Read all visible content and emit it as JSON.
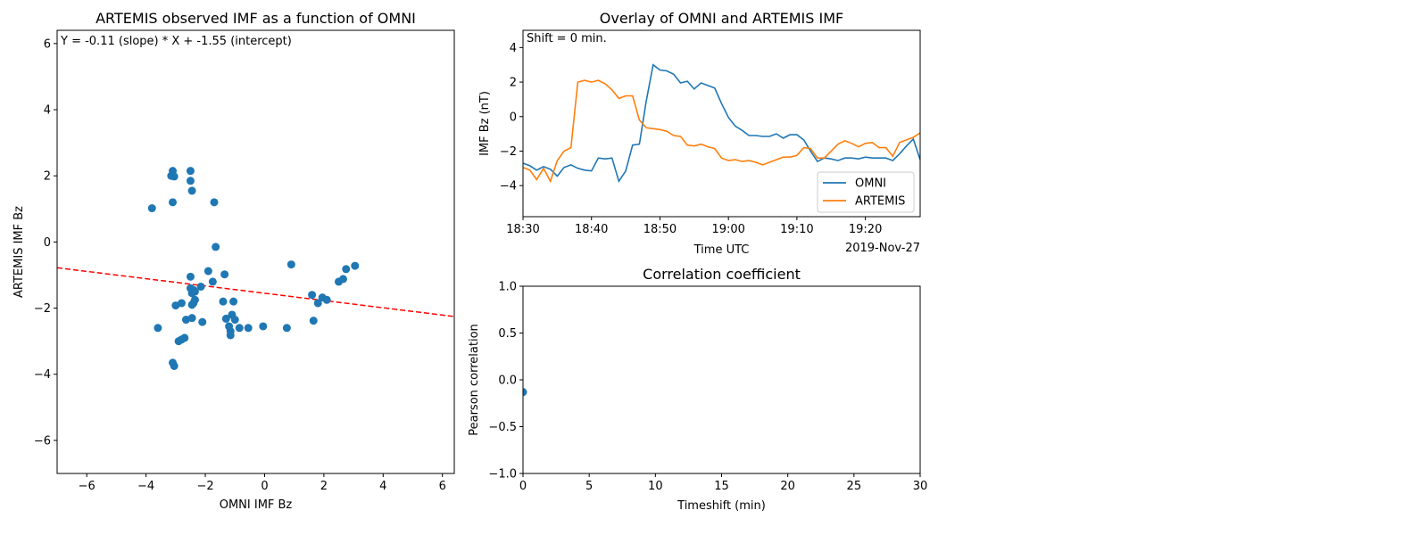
{
  "colors": {
    "blue": "#1f77b4",
    "orange": "#ff7f0e",
    "fit_line": "#ff0000"
  },
  "chart_data": [
    {
      "type": "scatter",
      "title": "ARTEMIS observed IMF as a function of OMNI",
      "xlabel": "OMNI IMF Bz",
      "ylabel": "ARTEMIS IMF Bz",
      "xlim": [
        -7,
        6.4
      ],
      "ylim": [
        -7,
        6.4
      ],
      "xticks": [
        -6,
        -4,
        -2,
        0,
        2,
        4,
        6
      ],
      "yticks": [
        -6,
        -4,
        -2,
        0,
        2,
        4,
        6
      ],
      "tick_labels_x": [
        "−6",
        "−4",
        "−2",
        "0",
        "2",
        "4",
        "6"
      ],
      "tick_labels_y": [
        "−6",
        "−4",
        "−2",
        "0",
        "2",
        "4",
        "6"
      ],
      "annotation": "Y = -0.11 (slope) * X + -1.55 (intercept)",
      "fit": {
        "slope": -0.11,
        "intercept": -1.55,
        "style": "dashed"
      },
      "points": [
        [
          -3.8,
          1.02
        ],
        [
          -3.6,
          -2.6
        ],
        [
          -3.15,
          2.0
        ],
        [
          -3.1,
          2.15
        ],
        [
          -3.05,
          1.98
        ],
        [
          -3.1,
          1.2
        ],
        [
          -2.5,
          2.15
        ],
        [
          -2.5,
          1.85
        ],
        [
          -2.45,
          1.55
        ],
        [
          -1.7,
          1.2
        ],
        [
          -1.65,
          -0.15
        ],
        [
          -3.1,
          -3.65
        ],
        [
          -3.05,
          -3.75
        ],
        [
          -2.9,
          -3.0
        ],
        [
          -2.8,
          -2.95
        ],
        [
          -2.7,
          -2.9
        ],
        [
          -3.0,
          -1.92
        ],
        [
          -2.8,
          -1.85
        ],
        [
          -2.65,
          -2.35
        ],
        [
          -2.5,
          -1.05
        ],
        [
          -2.5,
          -1.4
        ],
        [
          -2.45,
          -1.55
        ],
        [
          -2.4,
          -1.45
        ],
        [
          -2.35,
          -1.5
        ],
        [
          -2.45,
          -1.9
        ],
        [
          -2.4,
          -1.85
        ],
        [
          -2.35,
          -1.75
        ],
        [
          -2.45,
          -2.3
        ],
        [
          -2.15,
          -1.35
        ],
        [
          -2.1,
          -2.42
        ],
        [
          -1.9,
          -0.88
        ],
        [
          -1.75,
          -1.2
        ],
        [
          -1.4,
          -1.8
        ],
        [
          -1.35,
          -0.98
        ],
        [
          -1.3,
          -2.32
        ],
        [
          -1.2,
          -2.55
        ],
        [
          -1.15,
          -2.7
        ],
        [
          -1.15,
          -2.82
        ],
        [
          -1.1,
          -2.2
        ],
        [
          -1.05,
          -1.8
        ],
        [
          -1.0,
          -2.35
        ],
        [
          -0.85,
          -2.6
        ],
        [
          -0.55,
          -2.6
        ],
        [
          -0.05,
          -2.55
        ],
        [
          0.75,
          -2.6
        ],
        [
          0.9,
          -0.68
        ],
        [
          1.6,
          -1.6
        ],
        [
          1.65,
          -2.38
        ],
        [
          1.8,
          -1.85
        ],
        [
          1.95,
          -1.68
        ],
        [
          2.1,
          -1.75
        ],
        [
          2.5,
          -1.2
        ],
        [
          2.65,
          -1.12
        ],
        [
          2.75,
          -0.82
        ],
        [
          3.05,
          -0.72
        ]
      ]
    },
    {
      "type": "line",
      "title": "Overlay of OMNI and ARTEMIS IMF",
      "xlabel": "Time UTC",
      "ylabel": "IMF Bz (nT)",
      "date_label": "2019-Nov-27",
      "annotation": "Shift = 0 min.",
      "xlim": [
        "18:30",
        "19:28"
      ],
      "ylim": [
        -5.8,
        5
      ],
      "xticks": [
        "18:30",
        "18:40",
        "18:50",
        "19:00",
        "19:10",
        "19:20"
      ],
      "yticks": [
        -4,
        -2,
        0,
        2,
        4
      ],
      "tick_labels_y": [
        "−4",
        "−2",
        "0",
        "2",
        "4"
      ],
      "legend": {
        "position": "lower-right",
        "entries": [
          "OMNI",
          "ARTEMIS"
        ]
      },
      "series": [
        {
          "name": "OMNI",
          "x": [
            "18:30",
            "18:31",
            "18:32",
            "18:33",
            "18:34",
            "18:35",
            "18:36",
            "18:37",
            "18:38",
            "18:39",
            "18:40",
            "18:41",
            "18:42",
            "18:43",
            "18:44",
            "18:45",
            "18:46",
            "18:47",
            "18:48",
            "18:49",
            "18:50",
            "18:51",
            "18:52",
            "18:53",
            "18:54",
            "18:55",
            "18:56",
            "18:57",
            "18:58",
            "18:59",
            "19:00",
            "19:01",
            "19:02",
            "19:03",
            "19:04",
            "19:05",
            "19:06",
            "19:07",
            "19:08",
            "19:09",
            "19:10",
            "19:11",
            "19:12",
            "19:13",
            "19:14",
            "19:15",
            "19:16",
            "19:17",
            "19:18",
            "19:19",
            "19:20",
            "19:21",
            "19:22",
            "19:23",
            "19:24",
            "19:25",
            "19:26",
            "19:27",
            "19:28"
          ],
          "y": [
            -2.7,
            -2.85,
            -3.1,
            -2.9,
            -3.05,
            -3.45,
            -2.95,
            -2.8,
            -3.0,
            -3.1,
            -3.15,
            -2.4,
            -2.45,
            -2.4,
            -3.75,
            -3.15,
            -1.65,
            -1.6,
            0.9,
            3.0,
            2.7,
            2.65,
            2.45,
            1.95,
            2.05,
            1.6,
            1.95,
            1.8,
            1.65,
            0.75,
            -0.05,
            -0.55,
            -0.8,
            -1.1,
            -1.1,
            -1.15,
            -1.15,
            -1.0,
            -1.25,
            -1.05,
            -1.05,
            -1.35,
            -2.0,
            -2.6,
            -2.4,
            -2.45,
            -2.55,
            -2.4,
            -2.4,
            -2.45,
            -2.35,
            -2.4,
            -2.4,
            -2.4,
            -2.55,
            -2.15,
            -1.7,
            -1.3,
            -2.5
          ]
        },
        {
          "name": "ARTEMIS",
          "x": [
            "18:30",
            "18:31",
            "18:32",
            "18:33",
            "18:34",
            "18:35",
            "18:36",
            "18:37",
            "18:38",
            "18:39",
            "18:40",
            "18:41",
            "18:42",
            "18:43",
            "18:44",
            "18:45",
            "18:46",
            "18:47",
            "18:48",
            "18:49",
            "18:50",
            "18:51",
            "18:52",
            "18:53",
            "18:54",
            "18:55",
            "18:56",
            "18:57",
            "18:58",
            "18:59",
            "19:00",
            "19:01",
            "19:02",
            "19:03",
            "19:04",
            "19:05",
            "19:06",
            "19:07",
            "19:08",
            "19:09",
            "19:10",
            "19:11",
            "19:12",
            "19:13",
            "19:14",
            "19:15",
            "19:16",
            "19:17",
            "19:18",
            "19:19",
            "19:20",
            "19:21",
            "19:22",
            "19:23",
            "19:24",
            "19:25",
            "19:26",
            "19:27",
            "19:28"
          ],
          "y": [
            -2.95,
            -3.1,
            -3.65,
            -3.0,
            -3.75,
            -2.55,
            -2.0,
            -1.8,
            2.0,
            2.1,
            2.0,
            2.1,
            1.9,
            1.55,
            1.05,
            1.2,
            1.2,
            -0.2,
            -0.65,
            -0.7,
            -0.75,
            -0.85,
            -1.1,
            -1.15,
            -1.65,
            -1.7,
            -1.6,
            -1.75,
            -1.85,
            -2.4,
            -2.55,
            -2.5,
            -2.6,
            -2.55,
            -2.65,
            -2.8,
            -2.65,
            -2.5,
            -2.35,
            -2.35,
            -2.25,
            -1.8,
            -1.85,
            -2.4,
            -2.4,
            -2.0,
            -1.6,
            -1.4,
            -1.55,
            -1.75,
            -1.55,
            -1.5,
            -1.8,
            -1.8,
            -2.3,
            -1.5,
            -1.35,
            -1.2,
            -0.95
          ]
        }
      ]
    },
    {
      "type": "scatter",
      "title": "Correlation coefficient",
      "xlabel": "Timeshift (min)",
      "ylabel": "Pearson correlation",
      "xlim": [
        0,
        30
      ],
      "ylim": [
        -1.0,
        1.0
      ],
      "xticks": [
        0,
        5,
        10,
        15,
        20,
        25,
        30
      ],
      "yticks": [
        -1.0,
        -0.5,
        0.0,
        0.5,
        1.0
      ],
      "tick_labels_x": [
        "0",
        "5",
        "10",
        "15",
        "20",
        "25",
        "30"
      ],
      "tick_labels_y": [
        "−1.0",
        "−0.5",
        "0.0",
        "0.5",
        "1.0"
      ],
      "points": [
        [
          0,
          -0.13
        ]
      ]
    }
  ]
}
